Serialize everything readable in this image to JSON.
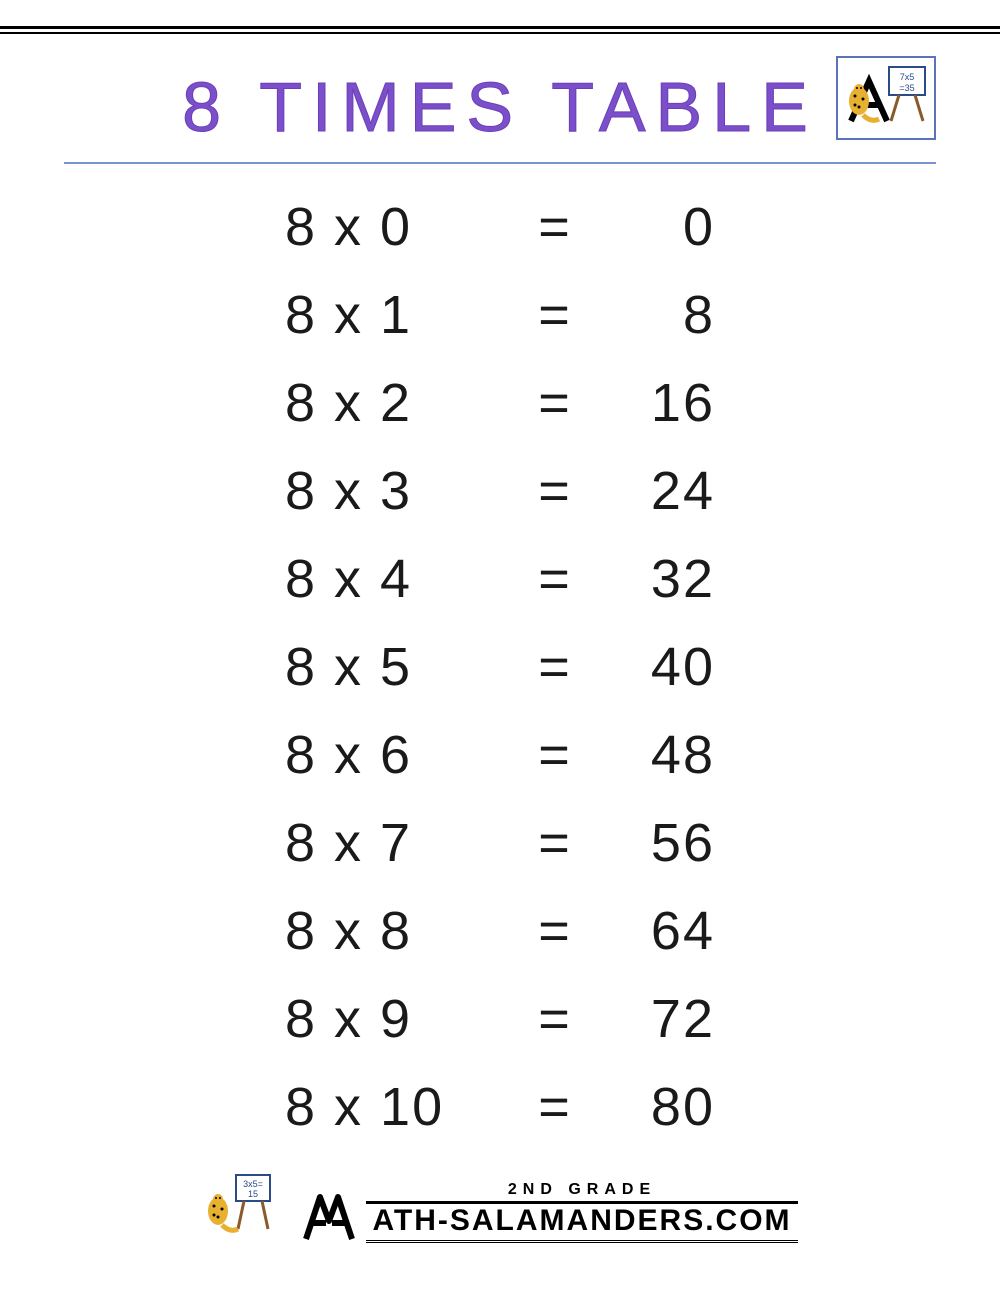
{
  "title": "8 TIMES TABLE",
  "title_color": "#7b4fc9",
  "underline_color": "#7a93d0",
  "text_color": "#1a1a1a",
  "background_color": "#ffffff",
  "font_family": "Century Gothic",
  "title_fontsize": 70,
  "row_fontsize": 54,
  "multiply_symbol": "x",
  "equals_symbol": "=",
  "base": 8,
  "rows": [
    {
      "a": 8,
      "b": 0,
      "result": 0
    },
    {
      "a": 8,
      "b": 1,
      "result": 8
    },
    {
      "a": 8,
      "b": 2,
      "result": 16
    },
    {
      "a": 8,
      "b": 3,
      "result": 24
    },
    {
      "a": 8,
      "b": 4,
      "result": 32
    },
    {
      "a": 8,
      "b": 5,
      "result": 40
    },
    {
      "a": 8,
      "b": 6,
      "result": 48
    },
    {
      "a": 8,
      "b": 7,
      "result": 56
    },
    {
      "a": 8,
      "b": 8,
      "result": 64
    },
    {
      "a": 8,
      "b": 9,
      "result": 72
    },
    {
      "a": 8,
      "b": 10,
      "result": 80
    }
  ],
  "logo": {
    "border_color": "#5b73b8",
    "salamander_color": "#e8b030",
    "board_text": "7x5=35"
  },
  "footer": {
    "grade": "2ND GRADE",
    "brand": "ATH-SALAMANDERS.COM",
    "board_text": "3x5=15",
    "salamander_color": "#e8b030"
  }
}
